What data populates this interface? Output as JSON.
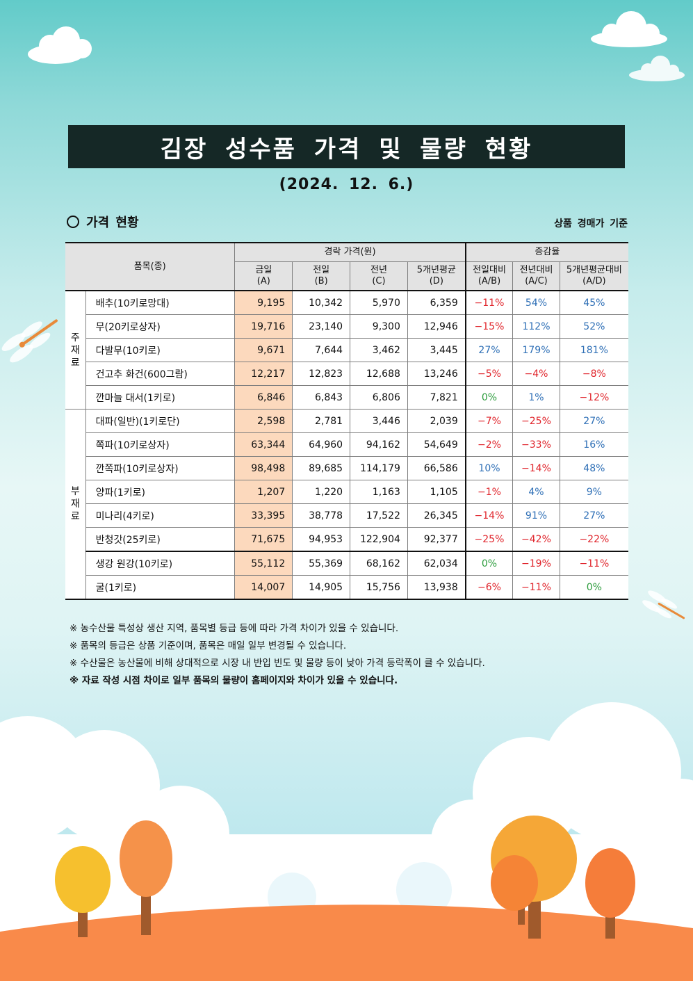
{
  "title": "김장 성수품 가격 및 물량 현황",
  "date": "(2024. 12. 6.)",
  "section_title": "가격 현황",
  "basis": "상품 경매가 기준",
  "table": {
    "header": {
      "item": "품목(종)",
      "price_group": "경락 가격(원)",
      "rate_group": "증감율",
      "columns": [
        {
          "top": "금일",
          "bottom": "(A)"
        },
        {
          "top": "전일",
          "bottom": "(B)"
        },
        {
          "top": "전년",
          "bottom": "(C)"
        },
        {
          "top": "5개년평균",
          "bottom": "(D)"
        },
        {
          "top": "전일대비",
          "bottom": "(A/B)"
        },
        {
          "top": "전년대비",
          "bottom": "(A/C)"
        },
        {
          "top": "5개년평균대비",
          "bottom": "(A/D)"
        }
      ]
    },
    "groups": [
      {
        "label": "주재료",
        "chars": [
          "주",
          "재",
          "료"
        ]
      },
      {
        "label": "부재료",
        "chars": [
          "부",
          "재",
          "료"
        ]
      }
    ],
    "rows": [
      {
        "name": "배추(10키로망대)",
        "a": "9,195",
        "b": "10,342",
        "c": "5,970",
        "d": "6,359",
        "ab": "−11%",
        "ac": "54%",
        "ad": "45%"
      },
      {
        "name": "무(20키로상자)",
        "a": "19,716",
        "b": "23,140",
        "c": "9,300",
        "d": "12,946",
        "ab": "−15%",
        "ac": "112%",
        "ad": "52%"
      },
      {
        "name": "다발무(10키로)",
        "a": "9,671",
        "b": "7,644",
        "c": "3,462",
        "d": "3,445",
        "ab": "27%",
        "ac": "179%",
        "ad": "181%"
      },
      {
        "name": "건고추 화건(600그람)",
        "a": "12,217",
        "b": "12,823",
        "c": "12,688",
        "d": "13,246",
        "ab": "−5%",
        "ac": "−4%",
        "ad": "−8%"
      },
      {
        "name": "깐마늘 대서(1키로)",
        "a": "6,846",
        "b": "6,843",
        "c": "6,806",
        "d": "7,821",
        "ab": "0%",
        "ac": "1%",
        "ad": "−12%"
      },
      {
        "name": "대파(일반)(1키로단)",
        "a": "2,598",
        "b": "2,781",
        "c": "3,446",
        "d": "2,039",
        "ab": "−7%",
        "ac": "−25%",
        "ad": "27%"
      },
      {
        "name": "쪽파(10키로상자)",
        "a": "63,344",
        "b": "64,960",
        "c": "94,162",
        "d": "54,649",
        "ab": "−2%",
        "ac": "−33%",
        "ad": "16%"
      },
      {
        "name": "깐쪽파(10키로상자)",
        "a": "98,498",
        "b": "89,685",
        "c": "114,179",
        "d": "66,586",
        "ab": "10%",
        "ac": "−14%",
        "ad": "48%"
      },
      {
        "name": "양파(1키로)",
        "a": "1,207",
        "b": "1,220",
        "c": "1,163",
        "d": "1,105",
        "ab": "−1%",
        "ac": "4%",
        "ad": "9%"
      },
      {
        "name": "미나리(4키로)",
        "a": "33,395",
        "b": "38,778",
        "c": "17,522",
        "d": "26,345",
        "ab": "−14%",
        "ac": "91%",
        "ad": "27%"
      },
      {
        "name": "반청갓(25키로)",
        "a": "71,675",
        "b": "94,953",
        "c": "122,904",
        "d": "92,377",
        "ab": "−25%",
        "ac": "−42%",
        "ad": "−22%"
      },
      {
        "name": "생강 원강(10키로)",
        "a": "55,112",
        "b": "55,369",
        "c": "68,162",
        "d": "62,034",
        "ab": "0%",
        "ac": "−19%",
        "ad": "−11%"
      },
      {
        "name": "굴(1키로)",
        "a": "14,007",
        "b": "14,905",
        "c": "15,756",
        "d": "13,938",
        "ab": "−6%",
        "ac": "−11%",
        "ad": "0%"
      }
    ]
  },
  "notes": [
    "※ 농수산물 특성상 생산 지역, 품목별 등급 등에 따라 가격 차이가 있을 수 있습니다.",
    "※ 품목의 등급은 상품 기준이며, 품목은 매일 일부 변경될 수 있습니다.",
    "※ 수산물은 농산물에 비해 상대적으로 시장 내 반입 빈도 및 물량 등이 낮아 가격 등락폭이 클 수 있습니다.",
    "※ 자료 작성 시점 차이로 일부 품목의 물량이 홈페이지와 차이가 있을 수 있습니다."
  ],
  "colors": {
    "title_bg": "#152826",
    "today_col": "#fcd9bd",
    "negative": "#e0242b",
    "positive": "#2e6fb6",
    "zero": "#2a9b3a"
  }
}
